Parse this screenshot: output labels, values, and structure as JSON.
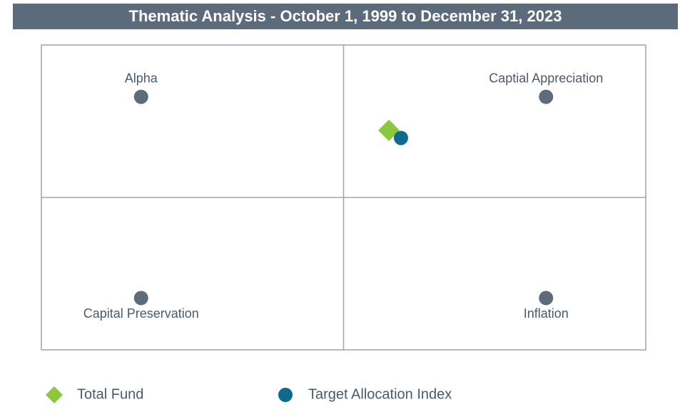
{
  "chart_data": {
    "type": "scatter",
    "title": "Thematic Analysis - October 1, 1999 to December 31, 2023",
    "xlim": [
      -1,
      1
    ],
    "ylim": [
      -1,
      1
    ],
    "anchors": {
      "names": [
        "Alpha",
        "Captial Appreciation",
        "Capital Preservation",
        "Inflation"
      ],
      "x": [
        -0.67,
        0.67,
        -0.67,
        0.67
      ],
      "y": [
        0.66,
        0.66,
        -0.66,
        -0.66
      ],
      "color": "#5d6b7a"
    },
    "series": [
      {
        "name": "Total Fund",
        "color": "#8dc63f",
        "marker": "diamond",
        "x": [
          0.15
        ],
        "y": [
          0.44
        ]
      },
      {
        "name": "Target Allocation Index",
        "color": "#0e6a8e",
        "marker": "circle",
        "x": [
          0.19
        ],
        "y": [
          0.39
        ]
      }
    ]
  }
}
